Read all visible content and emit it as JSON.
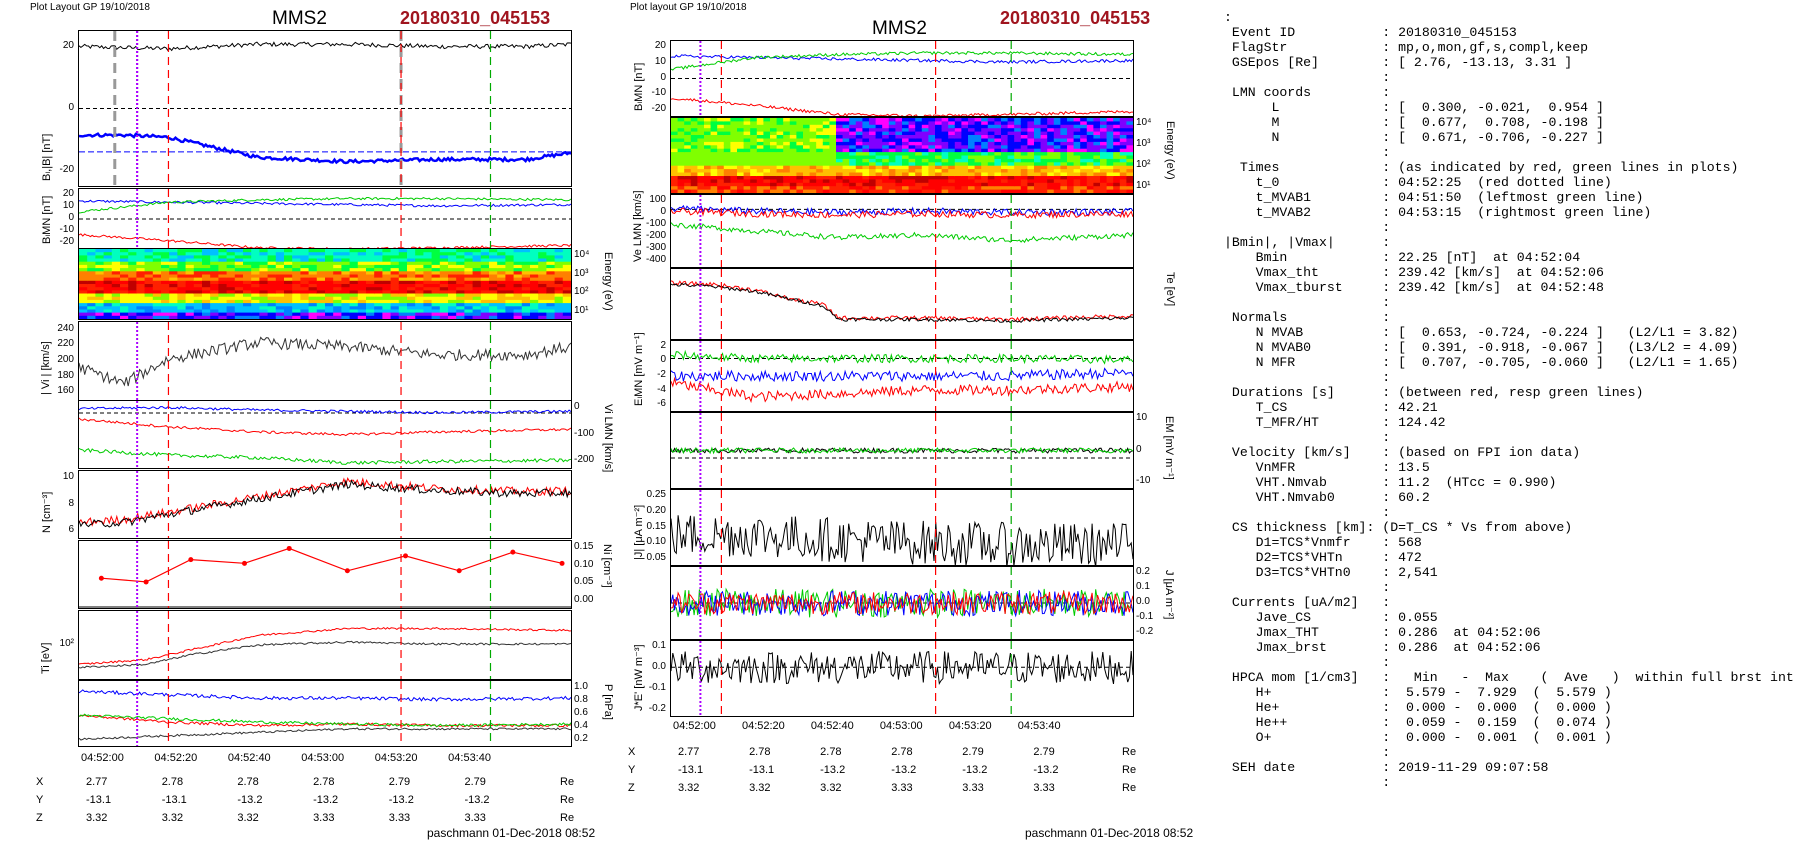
{
  "left": {
    "header": "Plot Layout GP 19/10/2018",
    "title": "MMS2",
    "event": "20180310_045153",
    "footer": "paschmann 01-Dec-2018 08:52",
    "xticks": [
      "04:52:00",
      "04:52:20",
      "04:52:40",
      "04:53:00",
      "04:53:20",
      "04:53:40"
    ],
    "coords": {
      "rows": [
        {
          "label": "X",
          "values": [
            "2.77",
            "2.78",
            "2.78",
            "2.78",
            "2.79",
            "2.79"
          ],
          "unit": "Re"
        },
        {
          "label": "Y",
          "values": [
            "-13.1",
            "-13.1",
            "-13.2",
            "-13.2",
            "-13.2",
            "-13.2"
          ],
          "unit": "Re"
        },
        {
          "label": "Z",
          "values": [
            "3.32",
            "3.32",
            "3.32",
            "3.33",
            "3.33",
            "3.33"
          ],
          "unit": "Re"
        }
      ]
    },
    "panels": [
      {
        "ylabel": "Bₗ,|B| [nT]",
        "yticks": [
          "20",
          "0",
          "-20"
        ],
        "legend": [
          "cs",
          "HT",
          "MVAB",
          "BL 50% of BL",
          "BL prst",
          "|B|"
        ]
      },
      {
        "ylabel": "BₗMN [nT]",
        "yticks": [
          "20",
          "10",
          "0",
          "-10",
          "-20"
        ],
        "legend": [
          "BL",
          "BM",
          "BN"
        ]
      },
      {
        "ylabel": "Energy (eV)",
        "yticks": [
          "10⁴",
          "10³",
          "10²",
          "10¹"
        ],
        "legend": []
      },
      {
        "ylabel": "| Vi | [km/s]",
        "yticks": [
          "240",
          "220",
          "200",
          "180",
          "160"
        ],
        "legend": [
          "HT",
          "vmax",
          "cs",
          "dvmax"
        ]
      },
      {
        "ylabel": "Vi LMN [km/s]",
        "yticks": [
          "0",
          "-100",
          "-200"
        ],
        "legend": [
          "VL",
          "VM",
          "VN"
        ]
      },
      {
        "ylabel": "N [cm⁻³]",
        "yticks": [
          "10",
          "8",
          "6"
        ],
        "legend": [
          "Ne",
          "Ni"
        ]
      },
      {
        "ylabel": "Ni [cm⁻³]",
        "yticks": [
          "0.15",
          "0.10",
          "0.05",
          "0.00"
        ],
        "legend": [
          "N He++",
          "N He+",
          "N O+"
        ]
      },
      {
        "ylabel": "Ti [eV]",
        "yticks": [
          "10²"
        ],
        "legend": [
          "T∥",
          "T⊥"
        ]
      },
      {
        "ylabel": "P [nPa]",
        "yticks": [
          "1.0",
          "0.8",
          "0.6",
          "0.4",
          "0.2"
        ],
        "legend": [
          "P",
          "Pe",
          "Pi",
          "Ptot"
        ]
      }
    ]
  },
  "middle": {
    "header": "Plot layout GP 19/10/2018",
    "title": "MMS2",
    "event": "20180310_045153",
    "footer": "paschmann 01-Dec-2018 08:52",
    "xticks": [
      "04:52:00",
      "04:52:20",
      "04:52:40",
      "04:53:00",
      "04:53:20",
      "04:53:40"
    ],
    "coords": {
      "rows": [
        {
          "label": "X",
          "values": [
            "2.77",
            "2.78",
            "2.78",
            "2.78",
            "2.79",
            "2.79"
          ],
          "unit": "Re"
        },
        {
          "label": "Y",
          "values": [
            "-13.1",
            "-13.1",
            "-13.2",
            "-13.2",
            "-13.2",
            "-13.2"
          ],
          "unit": "Re"
        },
        {
          "label": "Z",
          "values": [
            "3.32",
            "3.32",
            "3.32",
            "3.33",
            "3.33",
            "3.33"
          ],
          "unit": "Re"
        }
      ]
    },
    "panels": [
      {
        "ylabel": "BₗMN [nT]",
        "yticks": [
          "20",
          "10",
          "0",
          "-10",
          "-20"
        ],
        "legend": [
          "BL",
          "BM",
          "BN"
        ]
      },
      {
        "ylabel": "Energy (eV)",
        "yticks": [
          "10⁴",
          "10³",
          "10²",
          "10¹"
        ],
        "legend": []
      },
      {
        "ylabel": "Ve LMN [km/s]",
        "yticks": [
          "100",
          "0",
          "-100",
          "-200",
          "-300",
          "-400"
        ],
        "legend": []
      },
      {
        "ylabel": "Te [eV]",
        "yticks": [],
        "legend": []
      },
      {
        "ylabel": "EₗMN [mV m⁻¹]",
        "yticks": [
          "2",
          "0",
          "-2",
          "-4",
          "-6"
        ],
        "legend": [
          "EL"
        ]
      },
      {
        "ylabel": "EM [mV m⁻¹]",
        "yticks": [
          "10",
          "0",
          "-10"
        ],
        "legend": [
          "(Vex B)M",
          "EM"
        ]
      },
      {
        "ylabel": "|J| [μA m⁻²]",
        "yticks": [
          "0.25",
          "0.20",
          "0.15",
          "0.10",
          "0.05"
        ],
        "legend": [
          "|J|"
        ]
      },
      {
        "ylabel": "J [μA m⁻²]",
        "yticks": [
          "0.2",
          "0.1",
          "0.0",
          "-0.1",
          "-0.2"
        ],
        "legend": [
          "JL",
          "JM",
          "JN"
        ]
      },
      {
        "ylabel": "J*E' [nW m⁻³]",
        "yticks": [
          "0.1",
          "0.0",
          "-0.1",
          "-0.2"
        ],
        "legend": []
      }
    ]
  },
  "info": {
    "lines": [
      ":",
      " Event ID           : 20180310_045153",
      " FlagStr            : mp,o,mon,gf,s,compl,keep",
      " GSEpos [Re]        : [ 2.76, -13.13, 3.31 ]",
      "                    :",
      " LMN coords         :",
      "      L             : [  0.300, -0.021,  0.954 ]",
      "      M             : [  0.677,  0.708, -0.198 ]",
      "      N             : [  0.671, -0.706, -0.227 ]",
      "                    :",
      "  Times             : (as indicated by red, green lines in plots)",
      "    t_0             : 04:52:25  (red dotted line)",
      "    t_MVAB1         : 04:51:50  (leftmost green line)",
      "    t_MVAB2         : 04:53:15  (rightmost green line)",
      "                    :",
      "|Bmin|, |Vmax|      :",
      "    Bmin            : 22.25 [nT]  at 04:52:04",
      "    Vmax_tht        : 239.42 [km/s]  at 04:52:06",
      "    Vmax_tburst     : 239.42 [km/s]  at 04:52:48",
      "                    :",
      " Normals            :",
      "    N MVAB          : [  0.653, -0.724, -0.224 ]   (L2/L1 = 3.82)",
      "    N MVAB0         : [  0.391, -0.918, -0.067 ]   (L3/L2 = 4.09)",
      "    N MFR           : [  0.707, -0.705, -0.060 ]   (L2/L1 = 1.65)",
      "                    :",
      " Durations [s]      : (between red, resp green lines)",
      "    T_CS            : 42.21",
      "    T_MFR/HT        : 124.42",
      "                    :",
      " Velocity [km/s]    : (based on FPI ion data)",
      "    VnMFR           : 13.5",
      "    VHT.Nmvab       : 11.2  (HTcc = 0.990)",
      "    VHT.Nmvab0      : 60.2",
      "                    :",
      " CS thickness [km]: (D=T_CS * Vs from above)",
      "    D1=TCS*Vnmfr    : 568",
      "    D2=TCS*VHTn     : 472",
      "    D3=TCS*VHTn0    : 2,541",
      "                    :",
      " Currents [uA/m2]   :",
      "    Jave_CS         : 0.055",
      "    Jmax_THT        : 0.286  at 04:52:06",
      "    Jmax_brst       : 0.286  at 04:52:06",
      "                    :",
      " HPCA mom [1/cm3]   :   Min   -  Max    (  Ave   )  within full brst int",
      "    H+              :  5.579 -  7.929  (  5.579 )",
      "    He+             :  0.000 -  0.000  (  0.000 )",
      "    He++            :  0.059 -  0.159  (  0.074 )",
      "    O+              :  0.000 -  0.001  (  0.001 )",
      "                    :",
      " SEH date           : 2019-11-29 09:07:58",
      "                    :"
    ]
  },
  "chart_data": [
    {
      "type": "line",
      "title": "MMS2",
      "panels": [
        {
          "name": "B_L,|B|",
          "ylabel": "BL,|B| [nT]",
          "ylim": [
            -35,
            35
          ],
          "series": [
            {
              "name": "|B|",
              "x": [
                0,
                20,
                40,
                60,
                80,
                100,
                110
              ],
              "values": [
                28,
                27,
                29,
                29,
                28,
                28,
                29
              ]
            },
            {
              "name": "BL",
              "x": [
                0,
                10,
                20,
                40,
                60,
                80,
                100,
                110
              ],
              "values": [
                -12,
                -12,
                -13,
                -22,
                -24,
                -23,
                -23,
                -20
              ]
            }
          ]
        },
        {
          "name": "B_LMN",
          "ylabel": "BLMN [nT]",
          "ylim": [
            -25,
            25
          ],
          "series": [
            {
              "name": "BL",
              "x": [
                0,
                20,
                40,
                60,
                80,
                110
              ],
              "values": [
                15,
                14,
                13,
                12,
                11,
                12
              ]
            },
            {
              "name": "BM",
              "x": [
                0,
                20,
                40,
                60,
                80,
                110
              ],
              "values": [
                6,
                14,
                16,
                17,
                17,
                16
              ]
            },
            {
              "name": "BN",
              "x": [
                0,
                20,
                40,
                60,
                80,
                110
              ],
              "values": [
                -13,
                -18,
                -24,
                -25,
                -24,
                -22
              ]
            }
          ]
        },
        {
          "name": "|Vi|",
          "ylabel": "| Vi | [km/s]",
          "ylim": [
            150,
            240
          ],
          "series": [
            {
              "name": "|Vi|",
              "x": [
                0,
                10,
                20,
                40,
                60,
                80,
                100,
                110
              ],
              "values": [
                190,
                170,
                200,
                220,
                215,
                205,
                205,
                215
              ]
            }
          ]
        },
        {
          "name": "N",
          "ylabel": "N [cm-3]",
          "ylim": [
            5,
            11
          ],
          "series": [
            {
              "name": "Ne",
              "x": [
                0,
                10,
                20,
                40,
                60,
                80,
                100,
                110
              ],
              "values": [
                6.5,
                6.8,
                7.5,
                9,
                10.5,
                9.8,
                9.5,
                9.6
              ]
            },
            {
              "name": "Ni",
              "x": [
                0,
                10,
                20,
                40,
                60,
                80,
                100,
                110
              ],
              "values": [
                6.3,
                6.5,
                7.3,
                8.8,
                10.2,
                9.6,
                9.3,
                9.4
              ]
            }
          ]
        },
        {
          "name": "Ni HPCA",
          "ylabel": "Ni [cm-3]",
          "ylim": [
            0,
            0.15
          ],
          "series": [
            {
              "name": "N He+",
              "x": [
                5,
                15,
                25,
                37,
                47,
                60,
                73,
                85,
                97,
                108
              ],
              "values": [
                0.08,
                0.07,
                0.13,
                0.12,
                0.16,
                0.1,
                0.14,
                0.1,
                0.15,
                0.12
              ]
            }
          ]
        }
      ]
    },
    {
      "type": "line",
      "title": "MMS2",
      "panels": [
        {
          "name": "B_LMN",
          "ylabel": "BLMN [nT]",
          "ylim": [
            -25,
            25
          ],
          "series": [
            {
              "name": "BL",
              "x": [
                0,
                20,
                40,
                60,
                80,
                110
              ],
              "values": [
                15,
                14,
                13,
                12,
                11,
                12
              ]
            },
            {
              "name": "BM",
              "x": [
                0,
                20,
                40,
                60,
                80,
                110
              ],
              "values": [
                6,
                14,
                16,
                17,
                17,
                16
              ]
            },
            {
              "name": "BN",
              "x": [
                0,
                20,
                40,
                60,
                80,
                110
              ],
              "values": [
                -13,
                -18,
                -24,
                -25,
                -24,
                -22
              ]
            }
          ]
        },
        {
          "name": "Te",
          "ylabel": "Te [eV]",
          "ylim": [
            0,
            1
          ],
          "series": [
            {
              "name": "Te",
              "x": [
                0,
                10,
                20,
                30,
                36,
                40,
                60,
                80,
                110
              ],
              "values": [
                0.8,
                0.78,
                0.7,
                0.55,
                0.5,
                0.3,
                0.3,
                0.28,
                0.33
              ]
            }
          ]
        }
      ]
    }
  ]
}
